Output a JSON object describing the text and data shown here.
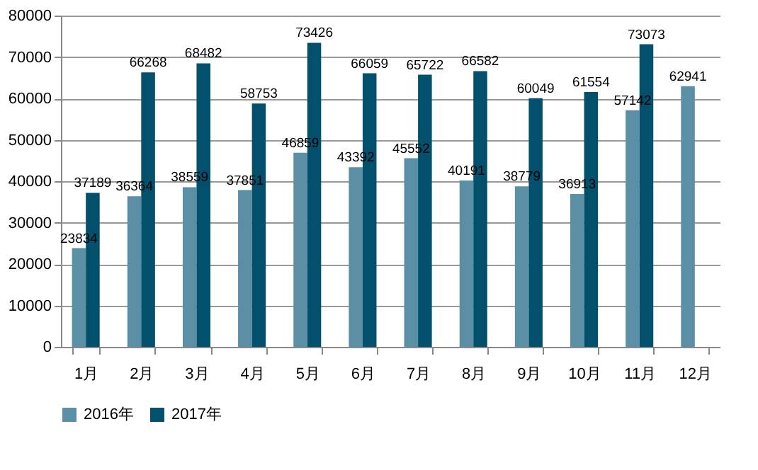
{
  "chart_data": {
    "type": "bar",
    "categories": [
      "1月",
      "2月",
      "3月",
      "4月",
      "5月",
      "6月",
      "7月",
      "8月",
      "9月",
      "10月",
      "11月",
      "12月"
    ],
    "series": [
      {
        "name": "2016年",
        "color": "#5b8fa6",
        "values": [
          23834,
          36364,
          38559,
          37851,
          46859,
          43392,
          45552,
          40191,
          38779,
          36913,
          57142,
          62941
        ]
      },
      {
        "name": "2017年",
        "color": "#02506c",
        "values": [
          37189,
          66268,
          68482,
          58753,
          73426,
          66059,
          65722,
          66582,
          60049,
          61554,
          73073,
          null
        ]
      }
    ],
    "ylim": [
      0,
      80000
    ],
    "yticks": [
      0,
      10000,
      20000,
      30000,
      40000,
      50000,
      60000,
      70000,
      80000
    ],
    "grid": "y",
    "legend": "bottom",
    "data_labels": true
  }
}
